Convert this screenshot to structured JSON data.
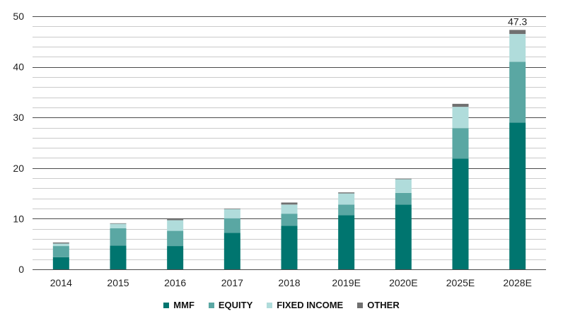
{
  "chart_data": {
    "type": "bar",
    "stacked": true,
    "categories": [
      "2014",
      "2015",
      "2016",
      "2017",
      "2018",
      "2019E",
      "2020E",
      "2025E",
      "2028E"
    ],
    "series": [
      {
        "name": "MMF",
        "color": "#00756f",
        "values": [
          2.4,
          4.7,
          4.6,
          7.2,
          8.6,
          10.7,
          12.8,
          21.9,
          29.0
        ]
      },
      {
        "name": "EQUITY",
        "color": "#5aa7a3",
        "values": [
          2.2,
          3.4,
          3.0,
          2.9,
          2.4,
          2.1,
          2.3,
          6.0,
          12.0
        ]
      },
      {
        "name": "FIXED INCOME",
        "color": "#b0dcdb",
        "values": [
          0.5,
          0.9,
          2.1,
          1.8,
          1.8,
          2.2,
          2.7,
          4.2,
          5.5
        ]
      },
      {
        "name": "OTHER",
        "color": "#707070",
        "values": [
          0.2,
          0.1,
          0.2,
          0.1,
          0.4,
          0.2,
          0.1,
          0.6,
          0.8
        ]
      }
    ],
    "data_labels": [
      {
        "category": "2028E",
        "text": "47.3"
      }
    ],
    "ylim": [
      0,
      50
    ],
    "yticks": [
      0,
      10,
      20,
      30,
      40,
      50
    ],
    "minor_step": 2,
    "legend_position": "bottom",
    "grid": true
  }
}
